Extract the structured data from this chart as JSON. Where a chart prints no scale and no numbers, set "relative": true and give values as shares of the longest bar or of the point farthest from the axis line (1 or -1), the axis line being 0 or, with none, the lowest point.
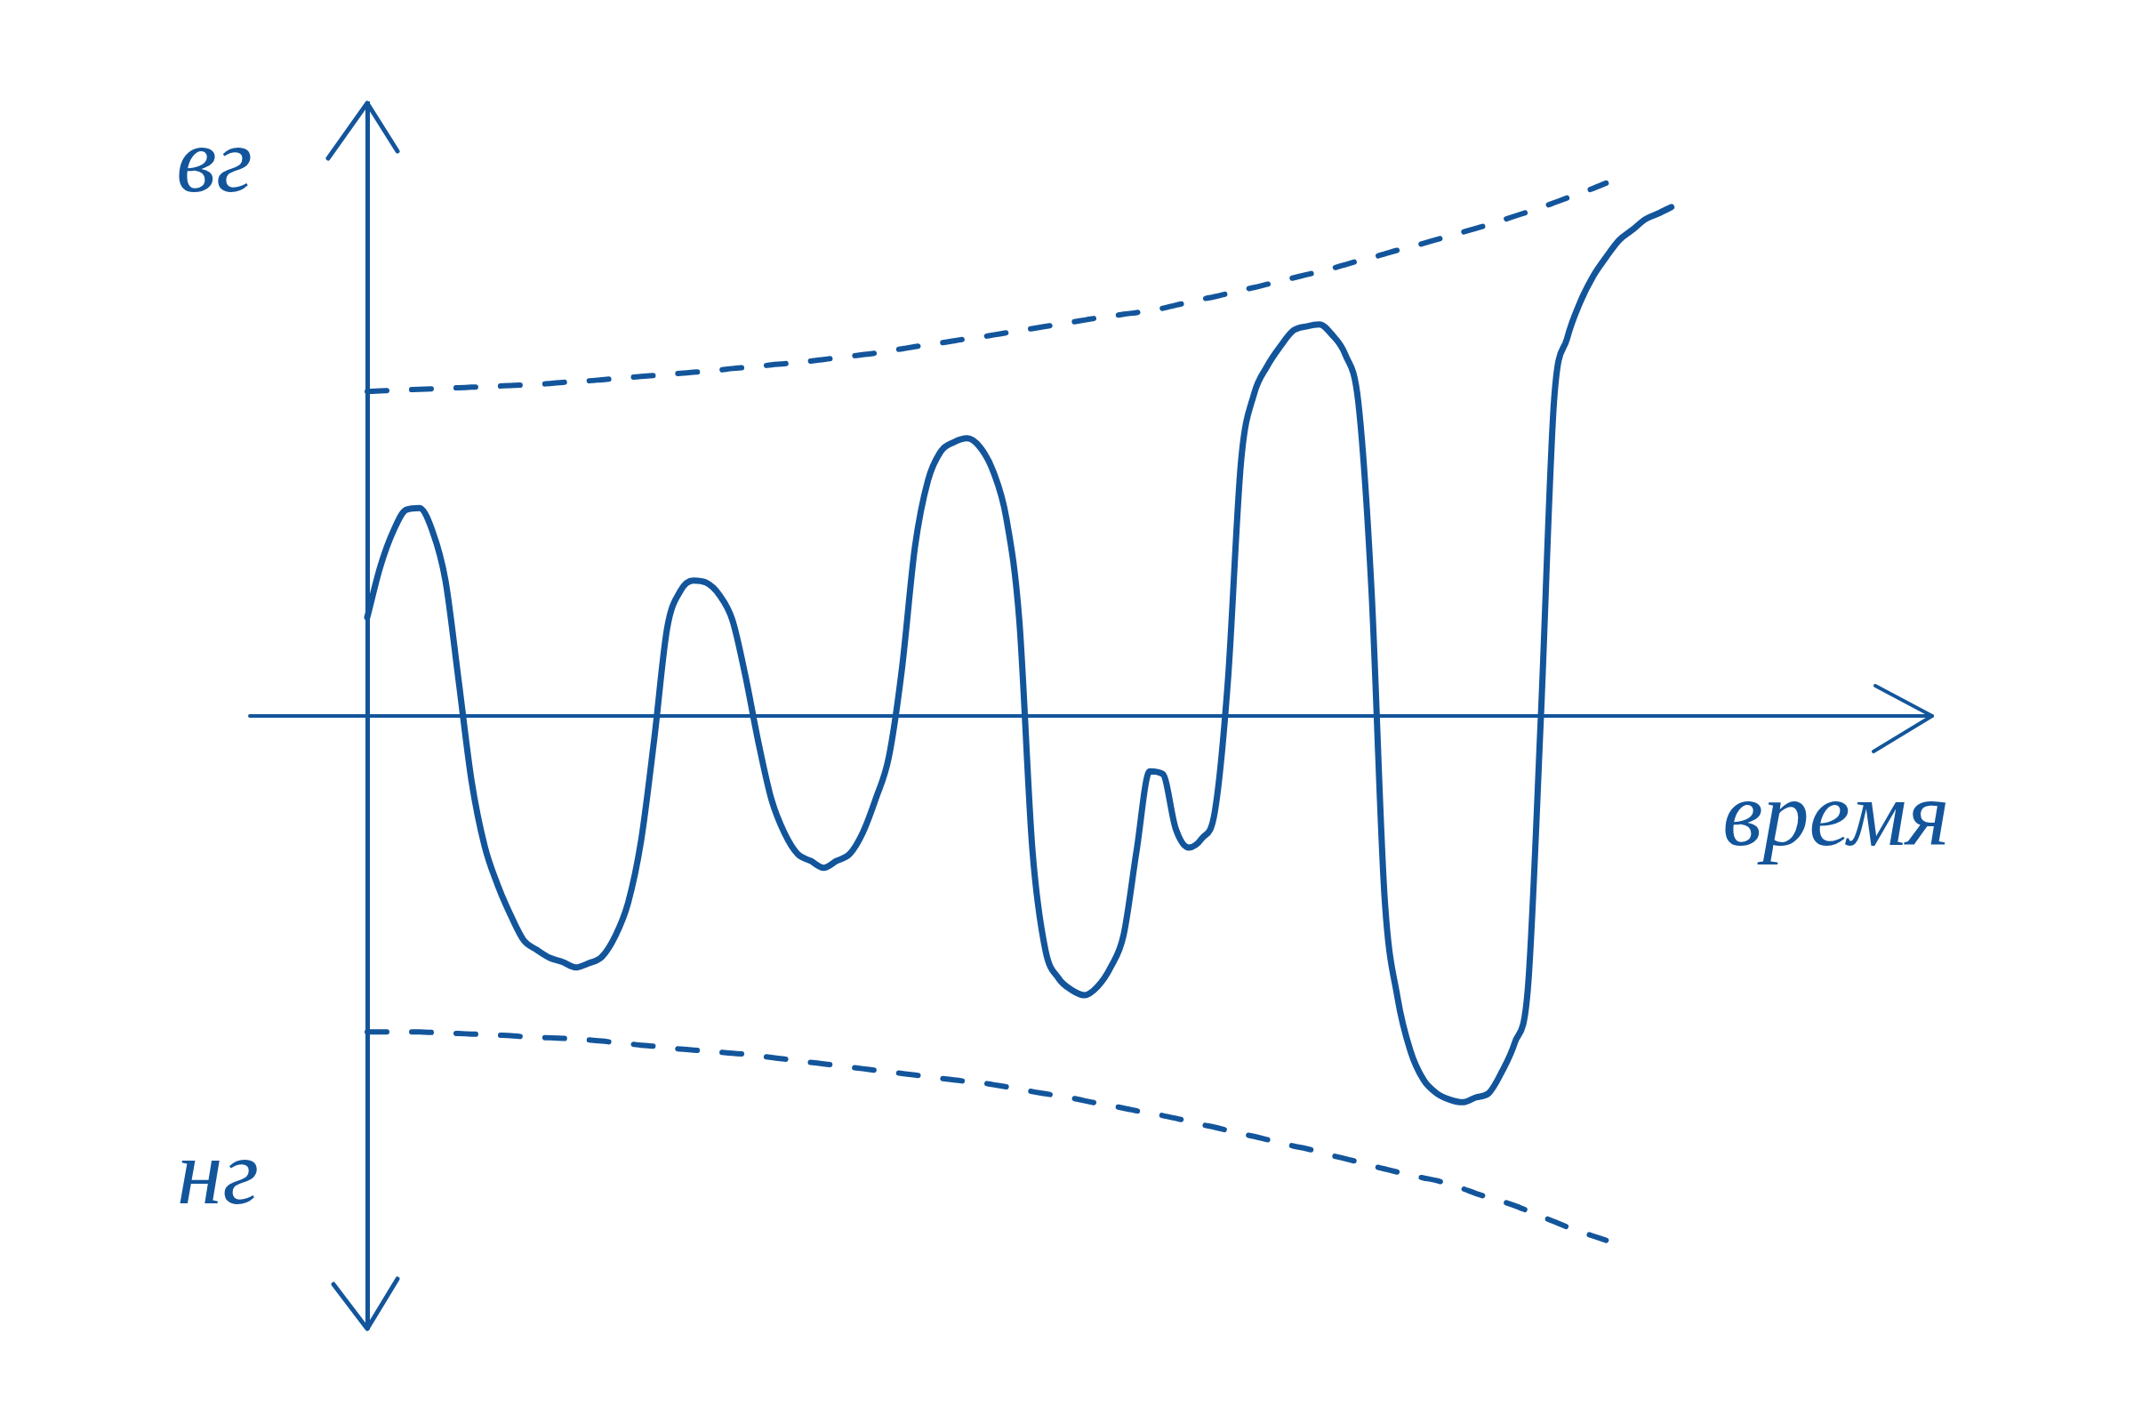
{
  "chart_data": {
    "type": "line",
    "relative": true,
    "xlabel": "время",
    "annotations": [
      "вг",
      "нг"
    ],
    "marker": "none",
    "ref_lines": [
      {
        "axis": "y",
        "value": 0
      }
    ],
    "categories": [
      null,
      null,
      null,
      null,
      null,
      null,
      null,
      null,
      null,
      null,
      null,
      null,
      null,
      null,
      null,
      null,
      null,
      null,
      null,
      null,
      null,
      null,
      null,
      null,
      null,
      null,
      null,
      null,
      null,
      null,
      null,
      null,
      null,
      null,
      null,
      null,
      null,
      null,
      null,
      null,
      null,
      null,
      null,
      null,
      null,
      null,
      null,
      null,
      null,
      null,
      null,
      null,
      null,
      null,
      null,
      null,
      null,
      null,
      null,
      null,
      null,
      null,
      null,
      null,
      null,
      null,
      null,
      null,
      null,
      null,
      null,
      null,
      null,
      null,
      null,
      null,
      null,
      null,
      null,
      null,
      null,
      null,
      null,
      null,
      null,
      null,
      null,
      null,
      null,
      null,
      null,
      null,
      null,
      null,
      null,
      null,
      null,
      null,
      null,
      null,
      null,
      null,
      null,
      null,
      null,
      null,
      null,
      null,
      null,
      null,
      null,
      null,
      null,
      null,
      null,
      null,
      null,
      null,
      null,
      null,
      null,
      null,
      null,
      null,
      null,
      null,
      null,
      null,
      null,
      null
    ],
    "series": [
      {
        "color": "#13559b",
        "line_style": "solid",
        "values": [
          null,
          null,
          null,
          null,
          null,
          null,
          null,
          null,
          null,
          0.185,
          0.28,
          0.347,
          0.387,
          0.39,
          0.347,
          0.254,
          0.068,
          -0.122,
          -0.244,
          -0.317,
          -0.374,
          -0.421,
          -0.439,
          -0.454,
          -0.462,
          -0.472,
          -0.464,
          -0.452,
          -0.414,
          -0.351,
          -0.234,
          -0.045,
          0.165,
          0.234,
          0.254,
          0.25,
          0.227,
          0.18,
          0.075,
          -0.05,
          -0.157,
          -0.22,
          -0.259,
          -0.272,
          -0.285,
          -0.272,
          -0.259,
          -0.219,
          -0.155,
          -0.077,
          0.088,
          0.317,
          0.442,
          0.497,
          0.514,
          0.521,
          0.504,
          0.459,
          0.372,
          0.18,
          -0.249,
          -0.439,
          -0.492,
          -0.514,
          -0.524,
          -0.508,
          -0.472,
          -0.411,
          -0.252,
          -0.104,
          -0.109,
          -0.212,
          -0.247,
          -0.23,
          -0.179,
          0.067,
          0.476,
          0.604,
          0.656,
          0.693,
          0.723,
          0.731,
          0.735,
          0.715,
          0.678,
          0.588,
          0.24,
          -0.336,
          -0.528,
          -0.629,
          -0.683,
          -0.708,
          -0.72,
          -0.725,
          -0.716,
          -0.708,
          -0.668,
          -0.613,
          -0.511,
          0,
          0.589,
          0.708,
          0.776,
          0.825,
          0.861,
          0.893,
          0.912,
          0.932,
          0.943,
          0.955,
          null,
          null,
          null,
          null,
          null,
          null,
          null,
          null,
          null,
          null,
          null,
          null,
          null,
          null,
          null,
          null,
          null,
          null,
          null,
          null
        ]
      },
      {
        "color": "#13559b",
        "line_style": "dashed",
        "values": [
          null,
          null,
          null,
          null,
          null,
          null,
          null,
          null,
          null,
          0.609,
          0.61,
          0.611,
          0.612,
          0.613,
          0.614,
          0.615,
          0.616,
          0.617,
          0.618,
          0.619,
          0.62,
          0.621,
          0.622,
          0.624,
          0.626,
          0.628,
          0.629,
          0.631,
          0.633,
          0.635,
          0.637,
          0.639,
          0.641,
          0.643,
          0.645,
          0.647,
          0.649,
          0.652,
          0.654,
          0.656,
          0.659,
          0.661,
          0.664,
          0.666,
          0.669,
          0.672,
          0.675,
          0.678,
          0.681,
          0.685,
          0.689,
          0.693,
          0.697,
          0.7,
          0.704,
          0.708,
          0.711,
          0.715,
          0.719,
          0.723,
          0.727,
          0.731,
          0.735,
          0.739,
          0.743,
          0.747,
          0.75,
          0.754,
          0.757,
          0.761,
          0.765,
          0.771,
          0.776,
          0.782,
          0.787,
          0.793,
          0.799,
          0.804,
          0.81,
          0.816,
          0.822,
          0.828,
          0.834,
          0.84,
          0.847,
          0.854,
          0.86,
          0.867,
          0.874,
          0.88,
          0.887,
          0.894,
          0.901,
          0.908,
          0.915,
          0.922,
          0.93,
          0.938,
          0.946,
          0.954,
          0.963,
          0.972,
          0.981,
          0.99,
          1,
          null,
          null,
          null,
          null,
          null,
          null,
          null,
          null,
          null,
          null,
          null,
          null,
          null,
          null,
          null,
          null,
          null,
          null,
          null,
          null,
          null,
          null,
          null,
          null,
          null
        ]
      },
      {
        "color": "#13559b",
        "line_style": "dashed",
        "values": [
          null,
          null,
          null,
          null,
          null,
          null,
          null,
          null,
          null,
          -0.593,
          -0.593,
          -0.593,
          -0.593,
          -0.593,
          -0.594,
          -0.595,
          -0.596,
          -0.597,
          -0.598,
          -0.599,
          -0.6,
          -0.602,
          -0.603,
          -0.604,
          -0.605,
          -0.606,
          -0.608,
          -0.61,
          -0.613,
          -0.615,
          -0.618,
          -0.62,
          -0.622,
          -0.625,
          -0.627,
          -0.629,
          -0.631,
          -0.633,
          -0.635,
          -0.638,
          -0.641,
          -0.644,
          -0.647,
          -0.65,
          -0.653,
          -0.656,
          -0.659,
          -0.662,
          -0.665,
          -0.668,
          -0.671,
          -0.674,
          -0.677,
          -0.68,
          -0.683,
          -0.686,
          -0.688,
          -0.692,
          -0.696,
          -0.7,
          -0.705,
          -0.709,
          -0.713,
          -0.717,
          -0.722,
          -0.727,
          -0.731,
          -0.736,
          -0.741,
          -0.745,
          -0.75,
          -0.755,
          -0.761,
          -0.767,
          -0.772,
          -0.778,
          -0.784,
          -0.789,
          -0.795,
          -0.801,
          -0.807,
          -0.812,
          -0.818,
          -0.825,
          -0.831,
          -0.837,
          -0.844,
          -0.85,
          -0.856,
          -0.862,
          -0.867,
          -0.872,
          -0.879,
          -0.887,
          -0.896,
          -0.904,
          -0.911,
          -0.919,
          -0.929,
          -0.939,
          -0.949,
          -0.959,
          -0.968,
          -0.976,
          -0.984,
          null,
          null,
          null,
          null,
          null,
          null,
          null,
          null,
          null,
          null,
          null,
          null,
          null,
          null,
          null,
          null,
          null,
          null,
          null,
          null,
          null,
          null,
          null,
          null,
          null
        ]
      }
    ]
  }
}
